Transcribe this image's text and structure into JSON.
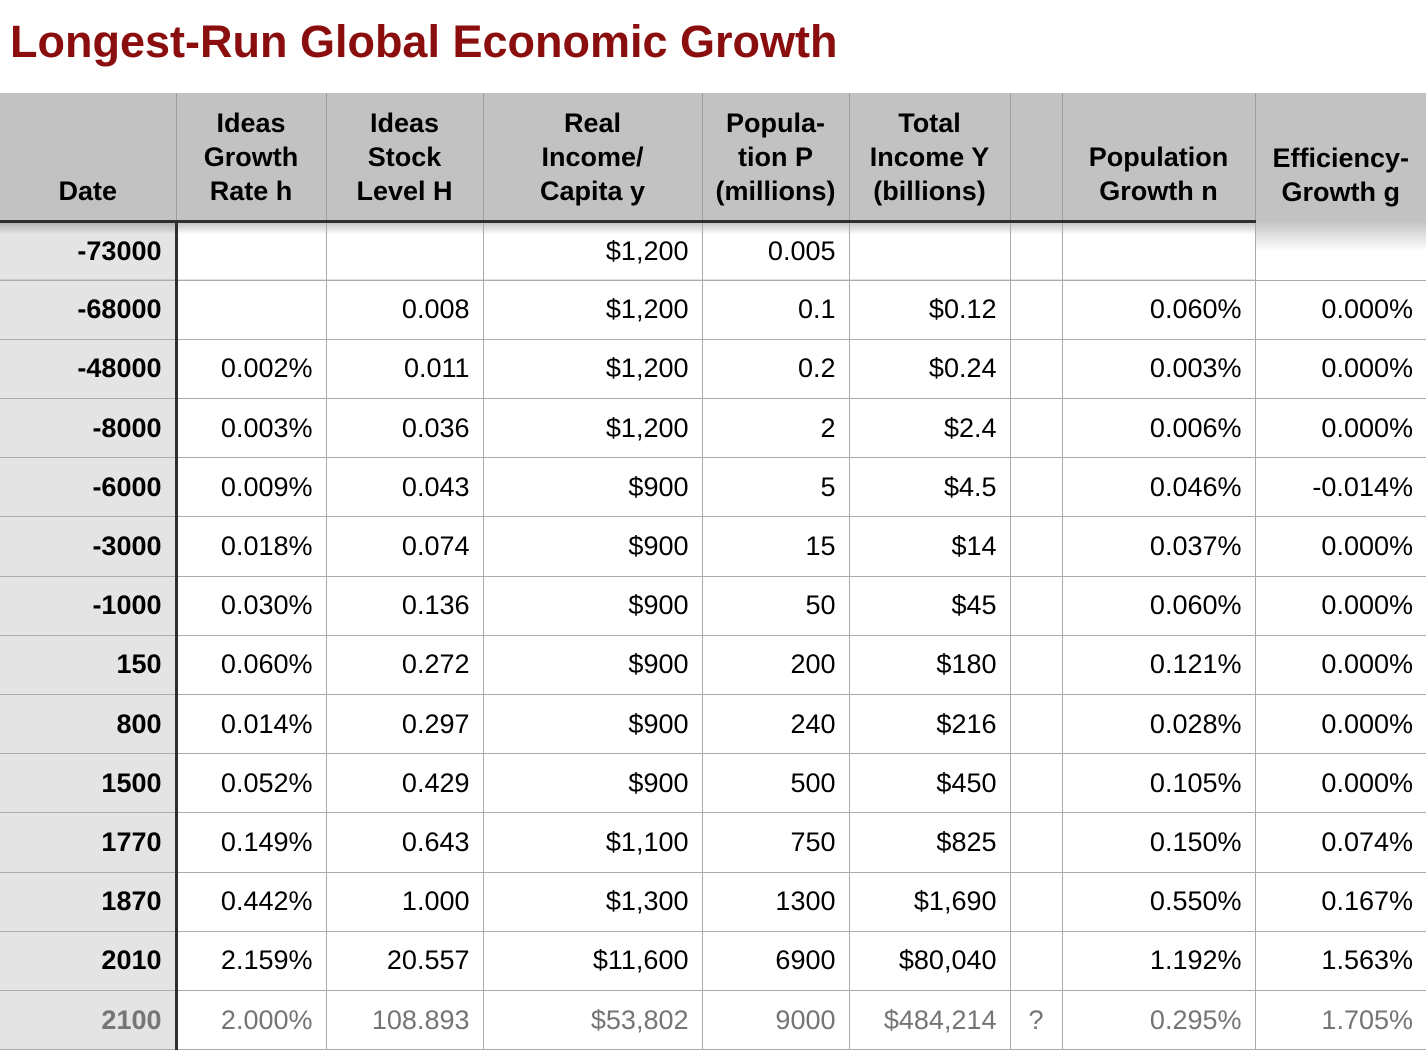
{
  "title": "Longest-Run Global Economic Growth",
  "colors": {
    "title_red": "#8B0E0E",
    "header_bg": "#C2C2C2",
    "date_column_bg": "#E4E4E4",
    "grid_line": "#ABABAB",
    "dark_rule": "#2F2F2F",
    "projection_text": "#757575"
  },
  "table": {
    "columns": [
      {
        "name": "date",
        "label": "Date"
      },
      {
        "name": "ideas-growth-rate-h",
        "label": "Ideas\nGrowth\nRate h"
      },
      {
        "name": "ideas-stock-level-H",
        "label": "Ideas\nStock\nLevel H"
      },
      {
        "name": "real-income-per-capita",
        "label": "Real\nIncome/\nCapita y"
      },
      {
        "name": "population-millions",
        "label": "Popula-\ntion P\n(millions)"
      },
      {
        "name": "total-income-billions",
        "label": "Total\nIncome Y\n(billions)"
      },
      {
        "name": "spacer",
        "label": ""
      },
      {
        "name": "population-growth-n",
        "label": "Population\nGrowth n"
      },
      {
        "name": "efficiency-growth-g",
        "label": "Efficiency-\nGrowth g"
      }
    ],
    "rows": [
      {
        "projection": false,
        "cells": [
          "-73000",
          "",
          "",
          "$1,200",
          "0.005",
          "",
          "",
          "",
          ""
        ]
      },
      {
        "projection": false,
        "cells": [
          "-68000",
          "",
          "0.008",
          "$1,200",
          "0.1",
          "$0.12",
          "",
          "0.060%",
          "0.000%"
        ]
      },
      {
        "projection": false,
        "cells": [
          "-48000",
          "0.002%",
          "0.011",
          "$1,200",
          "0.2",
          "$0.24",
          "",
          "0.003%",
          "0.000%"
        ]
      },
      {
        "projection": false,
        "cells": [
          "-8000",
          "0.003%",
          "0.036",
          "$1,200",
          "2",
          "$2.4",
          "",
          "0.006%",
          "0.000%"
        ]
      },
      {
        "projection": false,
        "cells": [
          "-6000",
          "0.009%",
          "0.043",
          "$900",
          "5",
          "$4.5",
          "",
          "0.046%",
          "-0.014%"
        ]
      },
      {
        "projection": false,
        "cells": [
          "-3000",
          "0.018%",
          "0.074",
          "$900",
          "15",
          "$14",
          "",
          "0.037%",
          "0.000%"
        ]
      },
      {
        "projection": false,
        "cells": [
          "-1000",
          "0.030%",
          "0.136",
          "$900",
          "50",
          "$45",
          "",
          "0.060%",
          "0.000%"
        ]
      },
      {
        "projection": false,
        "cells": [
          "150",
          "0.060%",
          "0.272",
          "$900",
          "200",
          "$180",
          "",
          "0.121%",
          "0.000%"
        ]
      },
      {
        "projection": false,
        "cells": [
          "800",
          "0.014%",
          "0.297",
          "$900",
          "240",
          "$216",
          "",
          "0.028%",
          "0.000%"
        ]
      },
      {
        "projection": false,
        "cells": [
          "1500",
          "0.052%",
          "0.429",
          "$900",
          "500",
          "$450",
          "",
          "0.105%",
          "0.000%"
        ]
      },
      {
        "projection": false,
        "cells": [
          "1770",
          "0.149%",
          "0.643",
          "$1,100",
          "750",
          "$825",
          "",
          "0.150%",
          "0.074%"
        ]
      },
      {
        "projection": false,
        "cells": [
          "1870",
          "0.442%",
          "1.000",
          "$1,300",
          "1300",
          "$1,690",
          "",
          "0.550%",
          "0.167%"
        ]
      },
      {
        "projection": false,
        "cells": [
          "2010",
          "2.159%",
          "20.557",
          "$11,600",
          "6900",
          "$80,040",
          "",
          "1.192%",
          "1.563%"
        ]
      },
      {
        "projection": true,
        "cells": [
          "2100",
          "2.000%",
          "108.893",
          "$53,802",
          "9000",
          "$484,214",
          "?",
          "0.295%",
          "1.705%"
        ]
      }
    ]
  }
}
